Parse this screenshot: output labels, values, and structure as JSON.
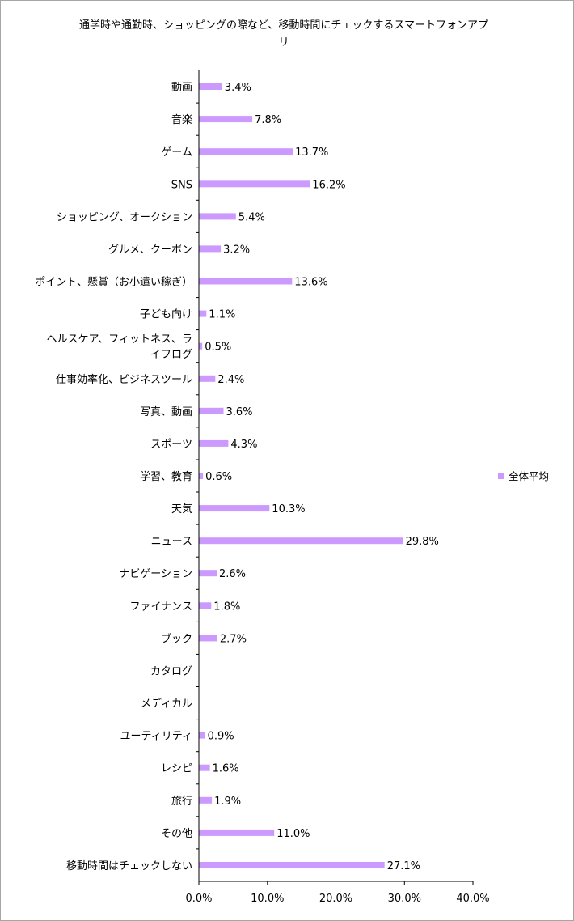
{
  "chart_data": {
    "type": "bar",
    "orientation": "horizontal",
    "title": "通学時や通勤時、ショッピングの際など、移動時間にチェックするスマートフォンアプリ",
    "categories": [
      "動画",
      "音楽",
      "ゲーム",
      "SNS",
      "ショッピング、オークション",
      "グルメ、クーポン",
      "ポイント、懸賞（お小遣い稼ぎ）",
      "子ども向け",
      "ヘルスケア、フィットネス、ライフログ",
      "仕事効率化、ビジネスツール",
      "写真、動画",
      "スポーツ",
      "学習、教育",
      "天気",
      "ニュース",
      "ナビゲーション",
      "ファイナンス",
      "ブック",
      "カタログ",
      "メディカル",
      "ユーティリティ",
      "レシピ",
      "旅行",
      "その他",
      "移動時間はチェックしない"
    ],
    "series": [
      {
        "name": "全体平均",
        "color": "#cc99ff",
        "values": [
          3.4,
          7.8,
          13.7,
          16.2,
          5.4,
          3.2,
          13.6,
          1.1,
          0.5,
          2.4,
          3.6,
          4.3,
          0.6,
          10.3,
          29.8,
          2.6,
          1.8,
          2.7,
          null,
          null,
          0.9,
          1.6,
          1.9,
          11.0,
          27.1
        ],
        "labels": [
          "3.4%",
          "7.8%",
          "13.7%",
          "16.2%",
          "5.4%",
          "3.2%",
          "13.6%",
          "1.1%",
          "0.5%",
          "2.4%",
          "3.6%",
          "4.3%",
          "0.6%",
          "10.3%",
          "29.8%",
          "2.6%",
          "1.8%",
          "2.7%",
          "",
          "",
          "0.9%",
          "1.6%",
          "1.9%",
          "11.0%",
          "27.1%"
        ]
      }
    ],
    "xlim": [
      0,
      40
    ],
    "xticks": [
      0,
      10,
      20,
      30,
      40
    ],
    "xtick_labels": [
      "0.0%",
      "10.0%",
      "20.0%",
      "30.0%",
      "40.0%"
    ],
    "grid": false,
    "legend_position": "right"
  }
}
